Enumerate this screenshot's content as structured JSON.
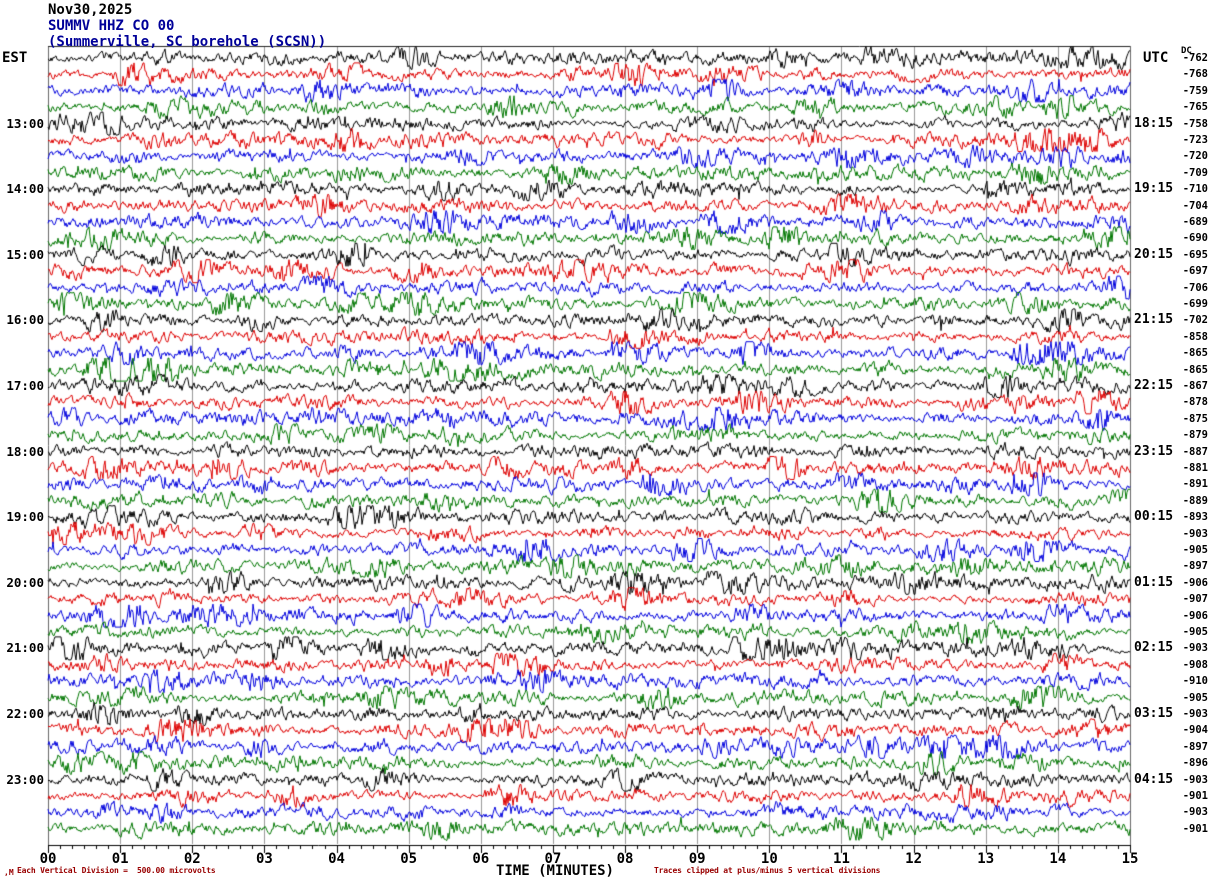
{
  "header": {
    "date_line": "Nov30,2025",
    "station_line": "SUMMV HHZ CO 00",
    "location_line": "(Summerville, SC borehole (SCSN))"
  },
  "plot": {
    "left_timezone_label": "EST",
    "right_timezone_label": "UTC",
    "dc_column_header": "DC",
    "x_axis_label": "TIME (MINUTES)"
  },
  "footer": {
    "corner_mark": ",M",
    "scale_note": "Each Vertical Division =  500.00 microvolts",
    "clip_note": "Traces clipped at plus/minus 5 vertical divisions"
  },
  "chart_data": {
    "type": "line",
    "subtype": "helicorder-seismogram",
    "title": "SUMMV HHZ CO 00 (Summerville, SC borehole (SCSN)) Nov30,2025",
    "xlabel": "TIME (MINUTES)",
    "x_range_minutes": [
      0,
      15
    ],
    "minutes_per_row": 15,
    "row_count": 48,
    "rows_per_hour": 4,
    "first_labeled_row_index": 4,
    "label_every_n_rows": 4,
    "trace_color_cycle": [
      "#000000",
      "#dd0000",
      "#0000dd",
      "#007700"
    ],
    "gridline_color": "#999999",
    "x_tick_labels": [
      "00",
      "01",
      "02",
      "03",
      "04",
      "05",
      "06",
      "07",
      "08",
      "09",
      "10",
      "11",
      "12",
      "13",
      "14",
      "15"
    ],
    "left_time_labels_est": [
      "13:00",
      "14:00",
      "15:00",
      "16:00",
      "17:00",
      "18:00",
      "19:00",
      "20:00",
      "21:00",
      "22:00",
      "23:00"
    ],
    "right_time_labels_utc": [
      "18:15",
      "19:15",
      "20:15",
      "21:15",
      "22:15",
      "23:15",
      "00:15",
      "01:15",
      "02:15",
      "03:15",
      "04:15"
    ],
    "dc_offsets": [
      -762,
      -768,
      -759,
      -765,
      -758,
      -723,
      -720,
      -709,
      -710,
      -704,
      -689,
      -690,
      -695,
      -697,
      -706,
      -699,
      -702,
      -858,
      -865,
      -865,
      -867,
      -878,
      -875,
      -879,
      -887,
      -881,
      -891,
      -889,
      -893,
      -903,
      -905,
      -897,
      -906,
      -907,
      -906,
      -905,
      -903,
      -908,
      -910,
      -905,
      -903,
      -904,
      -897,
      -896,
      -903,
      -901,
      -903,
      -901
    ],
    "division_microvolts": 500.0,
    "clip_divisions": 5
  }
}
